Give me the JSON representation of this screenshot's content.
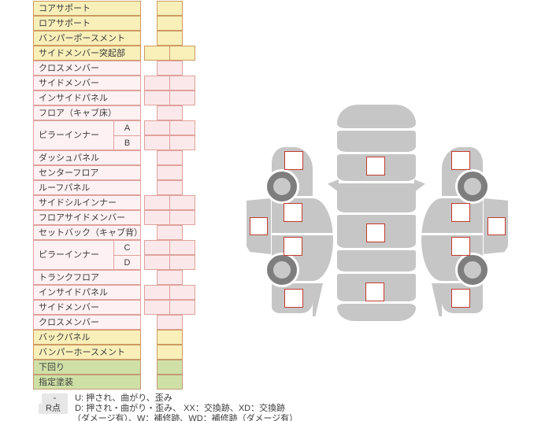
{
  "parts_table": {
    "rows": [
      {
        "label": "コアサポート",
        "type": "yellow",
        "cells": 1
      },
      {
        "label": "ロアサポート",
        "type": "yellow",
        "cells": 1
      },
      {
        "label": "バンパーポースメント",
        "type": "yellow",
        "cells": 1
      },
      {
        "label": "サイドメンバー突起部",
        "type": "yellow",
        "cells": 2
      },
      {
        "label": "クロスメンバー",
        "type": "pink",
        "cells": 1
      },
      {
        "label": "サイドメンバー",
        "type": "pink",
        "cells": 2
      },
      {
        "label": "インサイドパネル",
        "type": "pink",
        "cells": 2
      },
      {
        "label": "フロア（キャブ床）",
        "type": "pink",
        "cells": 1
      },
      {
        "label": "ピラーインナー",
        "type": "pink",
        "subs": [
          {
            "label": "A",
            "cells": 2
          },
          {
            "label": "B",
            "cells": 2
          }
        ]
      },
      {
        "label": "ダッシュパネル",
        "type": "pink",
        "cells": 1
      },
      {
        "label": "センターフロア",
        "type": "pink",
        "cells": 1
      },
      {
        "label": "ルーフパネル",
        "type": "pink",
        "cells": 1
      },
      {
        "label": "サイドシルインナー",
        "type": "pink",
        "cells": 2
      },
      {
        "label": "フロアサイドメンバー",
        "type": "pink",
        "cells": 2
      },
      {
        "label": "セットバック（キャブ背）",
        "type": "pink",
        "cells": 1
      },
      {
        "label": "ピラーインナー",
        "type": "pink",
        "subs": [
          {
            "label": "C",
            "cells": 2
          },
          {
            "label": "D",
            "cells": 2
          }
        ]
      },
      {
        "label": "トランクフロア",
        "type": "pink",
        "cells": 1
      },
      {
        "label": "インサイドパネル",
        "type": "pink",
        "cells": 2
      },
      {
        "label": "サイドメンバー",
        "type": "pink",
        "cells": 2
      },
      {
        "label": "クロスメンバー",
        "type": "pink",
        "cells": 1
      },
      {
        "label": "バックパネル",
        "type": "yellow",
        "cells": 1
      },
      {
        "label": "バンパーホースメント",
        "type": "yellow",
        "cells": 1
      },
      {
        "label": "下回り",
        "type": "green",
        "cells": 1
      },
      {
        "label": "指定塗装",
        "type": "green",
        "cells": 1
      }
    ]
  },
  "legend": {
    "row1_badge": "-",
    "row1_text": "U: 押され、曲がり、歪み",
    "row2_badge": "R点",
    "row2_text": "D: 押され・曲がり・歪み、 XX：交換跡、XD：交換跡",
    "row3_text": "（ダメージ有）、W：補修跡、WD：補修跡（ダメージ有）"
  },
  "colors": {
    "yellow_bg": "#f8efb9",
    "yellow_border": "#cf9a62",
    "pink_bg": "#fdf1f3",
    "pink_cell_bg": "#fbe8ea",
    "pink_border": "#dfa29c",
    "green_bg": "#cfe0a6",
    "green_border": "#c49a74",
    "body_gray": "#c6c6c6",
    "wheel_ring": "#7e7e7e",
    "wheel_hub": "#c9c9c9",
    "checkbox_border": "#c23b2e",
    "badge_bg": "#e7e7e7",
    "text": "#3c3c3c"
  }
}
